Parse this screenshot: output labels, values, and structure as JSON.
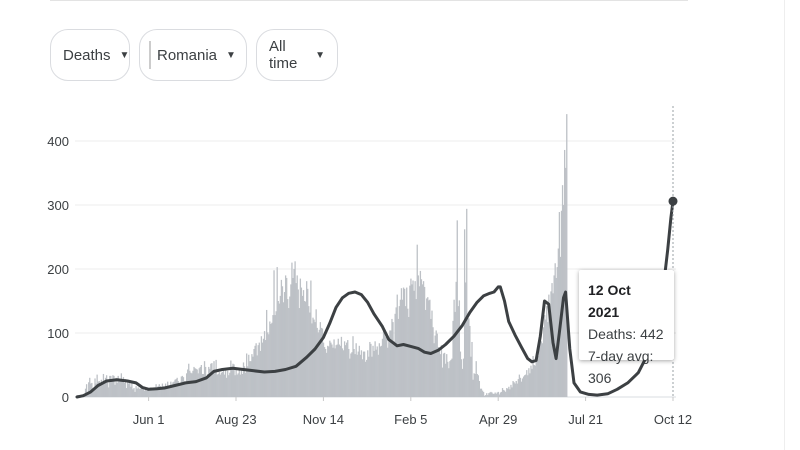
{
  "filters": {
    "metric": {
      "label": "Deaths"
    },
    "location": {
      "label": "Romania",
      "flag_colors": [
        "#002B7F",
        "#FCD116",
        "#CE1126"
      ]
    },
    "period": {
      "label": "All time"
    }
  },
  "tooltip": {
    "date": "12 Oct 2021",
    "deaths_line": "Deaths: 442",
    "avg_line": "7-day avg: 306"
  },
  "chart_data": {
    "type": "bar",
    "title": "",
    "xlabel": "",
    "ylabel": "",
    "ylim": [
      0,
      450
    ],
    "y_ticks": [
      0,
      100,
      200,
      300,
      400
    ],
    "x_ticks": [
      "Jun 1",
      "Aug 23",
      "Nov 14",
      "Feb 5",
      "Apr 29",
      "Jul 21",
      "Oct 12"
    ],
    "x_range_days": [
      -68,
      498
    ],
    "x_tick_days": [
      0,
      83,
      166,
      249,
      332,
      415,
      498
    ],
    "bar_color": "#bdc1c6",
    "line_color": "#3c4043",
    "series": [
      {
        "kind": "bars",
        "values": [
          3,
          3,
          3,
          3,
          3,
          4,
          4,
          3,
          13,
          20,
          8,
          23,
          30,
          21,
          22,
          9,
          13,
          29,
          21,
          35,
          24,
          25,
          22,
          27,
          24,
          36,
          22,
          30,
          34,
          27,
          15,
          33,
          33,
          25,
          34,
          33,
          19,
          30,
          22,
          33,
          26,
          27,
          37,
          26,
          31,
          22,
          28,
          14,
          26,
          21,
          26,
          16,
          24,
          12,
          14,
          8,
          17,
          13,
          15,
          13,
          13,
          15,
          15,
          14,
          10,
          15,
          10,
          15,
          14,
          12,
          15,
          13,
          12,
          13,
          13,
          20,
          11,
          17,
          20,
          17,
          14,
          21,
          17,
          14,
          21,
          14,
          24,
          15,
          18,
          24,
          16,
          23,
          24,
          27,
          28,
          30,
          25,
          19,
          18,
          32,
          33,
          31,
          25,
          22,
          37,
          43,
          52,
          41,
          38,
          37,
          41,
          47,
          45,
          44,
          43,
          37,
          45,
          47,
          50,
          36,
          36,
          56,
          47,
          32,
          36,
          47,
          44,
          52,
          53,
          38,
          56,
          43,
          58,
          35,
          36,
          39,
          35,
          38,
          39,
          45,
          35,
          45,
          30,
          41,
          34,
          38,
          57,
          43,
          52,
          51,
          34,
          46,
          35,
          37,
          42,
          35,
          45,
          36,
          54,
          48,
          38,
          68,
          48,
          66,
          56,
          56,
          67,
          63,
          75,
          80,
          84,
          65,
          81,
          85,
          72,
          95,
          85,
          91,
          103,
          89,
          136,
          101,
          98,
          118,
          114,
          116,
          128,
          198,
          128,
          134,
          203,
          150,
          146,
          158,
          183,
          173,
          148,
          164,
          190,
          186,
          153,
          139,
          157,
          176,
          210,
          186,
          200,
          212,
          178,
          190,
          168,
          139,
          185,
          171,
          158,
          167,
          150,
          149,
          181,
          169,
          142,
          132,
          182,
          115,
          124,
          121,
          117,
          137,
          108,
          101,
          105,
          117,
          108,
          107,
          85,
          78,
          75,
          69,
          80,
          79,
          88,
          85,
          82,
          77,
          90,
          76,
          81,
          82,
          91,
          82,
          80,
          94,
          76,
          73,
          87,
          81,
          85,
          89,
          75,
          60,
          68,
          70,
          95,
          75,
          67,
          84,
          66,
          71,
          80,
          66,
          73,
          59,
          71,
          71,
          55,
          58,
          73,
          63,
          86,
          83,
          63,
          80,
          72,
          87,
          74,
          79,
          66,
          84,
          79,
          80,
          91,
          104,
          101,
          94,
          94,
          77,
          90,
          104,
          104,
          122,
          117,
          87,
          130,
          140,
          160,
          122,
          142,
          152,
          170,
          152,
          171,
          169,
          142,
          171,
          138,
          125,
          174,
          185,
          176,
          182,
          166,
          181,
          153,
          238,
          190,
          173,
          197,
          184,
          176,
          181,
          172,
          136,
          154,
          156,
          151,
          152,
          122,
          135,
          109,
          84,
          96,
          104,
          99,
          78,
          76,
          67,
          81,
          46,
          68,
          69,
          52,
          67,
          55,
          45,
          56,
          58,
          60,
          119,
          152,
          133,
          180,
          276,
          142,
          151,
          71,
          59,
          44,
          60,
          262,
          179,
          294,
          129,
          123,
          111,
          63,
          86,
          27,
          37,
          36,
          56,
          36,
          34,
          25,
          13,
          13,
          10,
          8,
          2,
          3,
          6,
          3,
          6,
          7,
          8,
          7,
          5,
          5,
          7,
          5,
          7,
          8,
          4,
          7,
          8,
          14,
          11,
          10,
          8,
          14,
          13,
          16,
          12,
          19,
          15,
          25,
          23,
          21,
          25,
          21,
          28,
          35,
          30,
          24,
          29,
          32,
          34,
          35,
          42,
          34,
          45,
          37,
          49,
          44,
          64,
          50,
          49,
          61,
          63,
          64,
          80,
          90,
          87,
          84,
          109,
          128,
          121,
          142,
          117,
          160,
          133,
          165,
          178,
          162,
          190,
          209,
          186,
          203,
          232,
          289,
          219,
          291,
          331,
          300,
          386,
          358,
          442
        ],
        "start_day": -68
      },
      {
        "kind": "line",
        "name": "7-day avg",
        "points": [
          [
            -68,
            0
          ],
          [
            -62,
            2
          ],
          [
            -55,
            8
          ],
          [
            -48,
            18
          ],
          [
            -40,
            25
          ],
          [
            -30,
            27
          ],
          [
            -20,
            25
          ],
          [
            -12,
            22
          ],
          [
            -6,
            15
          ],
          [
            0,
            12
          ],
          [
            8,
            13
          ],
          [
            15,
            14
          ],
          [
            25,
            18
          ],
          [
            35,
            22
          ],
          [
            45,
            24
          ],
          [
            55,
            30
          ],
          [
            62,
            40
          ],
          [
            70,
            43
          ],
          [
            80,
            45
          ],
          [
            90,
            43
          ],
          [
            100,
            41
          ],
          [
            110,
            39
          ],
          [
            120,
            40
          ],
          [
            130,
            43
          ],
          [
            140,
            48
          ],
          [
            150,
            62
          ],
          [
            158,
            75
          ],
          [
            166,
            93
          ],
          [
            172,
            115
          ],
          [
            178,
            140
          ],
          [
            184,
            155
          ],
          [
            190,
            162
          ],
          [
            196,
            164
          ],
          [
            202,
            160
          ],
          [
            208,
            148
          ],
          [
            214,
            130
          ],
          [
            222,
            110
          ],
          [
            228,
            90
          ],
          [
            236,
            80
          ],
          [
            242,
            82
          ],
          [
            249,
            79
          ],
          [
            256,
            76
          ],
          [
            262,
            70
          ],
          [
            268,
            68
          ],
          [
            275,
            73
          ],
          [
            282,
            82
          ],
          [
            290,
            95
          ],
          [
            298,
            112
          ],
          [
            305,
            132
          ],
          [
            312,
            148
          ],
          [
            318,
            158
          ],
          [
            324,
            162
          ],
          [
            328,
            164
          ],
          [
            332,
            172
          ],
          [
            334,
            172
          ],
          [
            338,
            150
          ],
          [
            342,
            118
          ],
          [
            348,
            97
          ],
          [
            354,
            78
          ],
          [
            360,
            60
          ],
          [
            364,
            55
          ],
          [
            368,
            57
          ],
          [
            372,
            95
          ],
          [
            376,
            150
          ],
          [
            380,
            145
          ],
          [
            384,
            85
          ],
          [
            387,
            60
          ],
          [
            390,
            100
          ],
          [
            394,
            155
          ],
          [
            396,
            164
          ],
          [
            400,
            75
          ],
          [
            404,
            22
          ],
          [
            410,
            8
          ],
          [
            418,
            4
          ],
          [
            426,
            3
          ],
          [
            436,
            5
          ],
          [
            445,
            12
          ],
          [
            455,
            22
          ],
          [
            465,
            38
          ],
          [
            475,
            70
          ],
          [
            482,
            100
          ],
          [
            488,
            160
          ],
          [
            493,
            230
          ],
          [
            496,
            280
          ],
          [
            498,
            306
          ]
        ]
      }
    ],
    "highlight": {
      "x_day": 498,
      "y": 306
    }
  }
}
